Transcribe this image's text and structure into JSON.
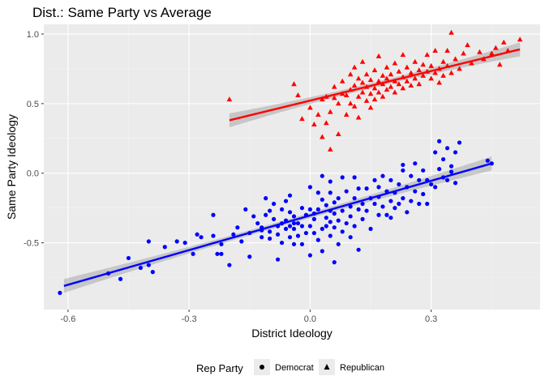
{
  "chart_data": {
    "type": "scatter",
    "title": "Dist.: Same Party vs Average",
    "xlabel": "District Ideology",
    "ylabel": "Same Party Ideology",
    "xlim": [
      -0.66,
      0.57
    ],
    "ylim": [
      -0.98,
      1.07
    ],
    "x_ticks": [
      -0.6,
      -0.3,
      0.0,
      0.3
    ],
    "x_tick_labels": [
      "-0.6",
      "-0.3",
      "0.0",
      "0.3"
    ],
    "y_ticks": [
      1.0,
      0.5,
      0.0,
      -0.5
    ],
    "y_tick_labels": [
      "1.0",
      "0.5",
      "0.0",
      "-0.5"
    ],
    "grid": true,
    "legend": {
      "title": "Rep Party",
      "position": "bottom",
      "entries": [
        "Democrat",
        "Republican"
      ]
    },
    "series": [
      {
        "name": "Democrat",
        "color": "#0000ff",
        "marker": "circle",
        "fit": {
          "x": [
            -0.61,
            0.45
          ],
          "y": [
            -0.81,
            0.07
          ]
        },
        "points": [
          [
            -0.62,
            -0.86
          ],
          [
            -0.5,
            -0.72
          ],
          [
            -0.47,
            -0.76
          ],
          [
            -0.45,
            -0.61
          ],
          [
            -0.42,
            -0.68
          ],
          [
            -0.4,
            -0.66
          ],
          [
            -0.4,
            -0.49
          ],
          [
            -0.39,
            -0.71
          ],
          [
            -0.36,
            -0.53
          ],
          [
            -0.33,
            -0.49
          ],
          [
            -0.31,
            -0.5
          ],
          [
            -0.29,
            -0.58
          ],
          [
            -0.28,
            -0.44
          ],
          [
            -0.27,
            -0.46
          ],
          [
            -0.24,
            -0.45
          ],
          [
            -0.24,
            -0.3
          ],
          [
            -0.23,
            -0.58
          ],
          [
            -0.22,
            -0.51
          ],
          [
            -0.22,
            -0.58
          ],
          [
            -0.2,
            -0.66
          ],
          [
            -0.19,
            -0.44
          ],
          [
            -0.18,
            -0.39
          ],
          [
            -0.17,
            -0.49
          ],
          [
            -0.16,
            -0.26
          ],
          [
            -0.15,
            -0.43
          ],
          [
            -0.15,
            -0.6
          ],
          [
            -0.14,
            -0.31
          ],
          [
            -0.13,
            -0.36
          ],
          [
            -0.12,
            -0.39
          ],
          [
            -0.12,
            -0.41
          ],
          [
            -0.12,
            -0.46
          ],
          [
            -0.11,
            -0.18
          ],
          [
            -0.11,
            -0.3
          ],
          [
            -0.1,
            -0.27
          ],
          [
            -0.1,
            -0.42
          ],
          [
            -0.1,
            -0.47
          ],
          [
            -0.09,
            -0.22
          ],
          [
            -0.09,
            -0.33
          ],
          [
            -0.08,
            -0.38
          ],
          [
            -0.08,
            -0.44
          ],
          [
            -0.08,
            -0.62
          ],
          [
            -0.07,
            -0.26
          ],
          [
            -0.07,
            -0.36
          ],
          [
            -0.07,
            -0.5
          ],
          [
            -0.06,
            -0.2
          ],
          [
            -0.06,
            -0.4
          ],
          [
            -0.06,
            -0.34
          ],
          [
            -0.05,
            -0.16
          ],
          [
            -0.05,
            -0.28
          ],
          [
            -0.05,
            -0.38
          ],
          [
            -0.05,
            -0.46
          ],
          [
            -0.04,
            -0.31
          ],
          [
            -0.04,
            -0.36
          ],
          [
            -0.04,
            -0.4
          ],
          [
            -0.04,
            -0.51
          ],
          [
            -0.03,
            -0.36
          ],
          [
            -0.03,
            -0.45
          ],
          [
            -0.02,
            -0.25
          ],
          [
            -0.02,
            -0.38
          ],
          [
            -0.02,
            -0.51
          ],
          [
            -0.01,
            -0.3
          ],
          [
            -0.01,
            -0.43
          ],
          [
            0.0,
            -0.1
          ],
          [
            0.0,
            -0.26
          ],
          [
            0.0,
            -0.38
          ],
          [
            0.0,
            -0.59
          ],
          [
            0.01,
            -0.29
          ],
          [
            0.01,
            -0.43
          ],
          [
            0.01,
            -0.33
          ],
          [
            0.02,
            -0.14
          ],
          [
            0.02,
            -0.26
          ],
          [
            0.02,
            -0.48
          ],
          [
            0.03,
            -0.02
          ],
          [
            0.03,
            -0.19
          ],
          [
            0.03,
            -0.4
          ],
          [
            0.03,
            -0.56
          ],
          [
            0.04,
            -0.23
          ],
          [
            0.04,
            -0.32
          ],
          [
            0.04,
            -0.38
          ],
          [
            0.05,
            -0.14
          ],
          [
            0.05,
            -0.27
          ],
          [
            0.05,
            -0.45
          ],
          [
            0.05,
            -0.35
          ],
          [
            0.05,
            -0.06
          ],
          [
            0.06,
            -0.21
          ],
          [
            0.06,
            -0.29
          ],
          [
            0.06,
            -0.39
          ],
          [
            0.06,
            -0.64
          ],
          [
            0.07,
            -0.18
          ],
          [
            0.07,
            -0.34
          ],
          [
            0.07,
            -0.51
          ],
          [
            0.08,
            -0.27
          ],
          [
            0.08,
            -0.03
          ],
          [
            0.08,
            -0.42
          ],
          [
            0.09,
            -0.13
          ],
          [
            0.09,
            -0.36
          ],
          [
            0.1,
            -0.24
          ],
          [
            0.1,
            -0.31
          ],
          [
            0.1,
            -0.46
          ],
          [
            0.11,
            -0.03
          ],
          [
            0.11,
            -0.18
          ],
          [
            0.11,
            -0.38
          ],
          [
            0.12,
            -0.11
          ],
          [
            0.12,
            -0.26
          ],
          [
            0.12,
            -0.55
          ],
          [
            0.13,
            -0.22
          ],
          [
            0.13,
            -0.33
          ],
          [
            0.14,
            -0.11
          ],
          [
            0.14,
            -0.27
          ],
          [
            0.15,
            -0.18
          ],
          [
            0.15,
            -0.4
          ],
          [
            0.16,
            -0.05
          ],
          [
            0.16,
            -0.22
          ],
          [
            0.17,
            -0.1
          ],
          [
            0.17,
            -0.3
          ],
          [
            0.17,
            -0.17
          ],
          [
            0.18,
            -0.24
          ],
          [
            0.18,
            -0.02
          ],
          [
            0.19,
            -0.13
          ],
          [
            0.19,
            -0.3
          ],
          [
            0.2,
            -0.2
          ],
          [
            0.2,
            -0.05
          ],
          [
            0.2,
            -0.32
          ],
          [
            0.21,
            -0.14
          ],
          [
            0.21,
            -0.25
          ],
          [
            0.22,
            -0.08
          ],
          [
            0.22,
            -0.22
          ],
          [
            0.23,
            0.06
          ],
          [
            0.23,
            -0.18
          ],
          [
            0.23,
            0.02
          ],
          [
            0.24,
            -0.1
          ],
          [
            0.24,
            -0.28
          ],
          [
            0.25,
            -0.02
          ],
          [
            0.25,
            -0.2
          ],
          [
            0.26,
            0.07
          ],
          [
            0.26,
            -0.13
          ],
          [
            0.27,
            -0.05
          ],
          [
            0.27,
            -0.22
          ],
          [
            0.28,
            -0.15
          ],
          [
            0.28,
            0.02
          ],
          [
            0.29,
            -0.05
          ],
          [
            0.29,
            -0.22
          ],
          [
            0.3,
            -0.08
          ],
          [
            0.31,
            0.15
          ],
          [
            0.31,
            -0.1
          ],
          [
            0.32,
            0.03
          ],
          [
            0.32,
            0.23
          ],
          [
            0.33,
            -0.03
          ],
          [
            0.33,
            0.1
          ],
          [
            0.34,
            0.18
          ],
          [
            0.34,
            -0.05
          ],
          [
            0.35,
            0.01
          ],
          [
            0.35,
            0.05
          ],
          [
            0.36,
            0.15
          ],
          [
            0.36,
            -0.07
          ],
          [
            0.37,
            0.22
          ],
          [
            0.44,
            0.09
          ],
          [
            0.45,
            0.07
          ]
        ]
      },
      {
        "name": "Republican",
        "color": "#ff0000",
        "marker": "triangle",
        "fit": {
          "x": [
            -0.2,
            0.52
          ],
          "y": [
            0.38,
            0.89
          ]
        },
        "points": [
          [
            -0.2,
            0.53
          ],
          [
            -0.04,
            0.64
          ],
          [
            -0.03,
            0.56
          ],
          [
            -0.02,
            0.39
          ],
          [
            0.0,
            0.47
          ],
          [
            0.01,
            0.35
          ],
          [
            0.02,
            0.42
          ],
          [
            0.03,
            0.26
          ],
          [
            0.03,
            0.53
          ],
          [
            0.04,
            0.36
          ],
          [
            0.04,
            0.55
          ],
          [
            0.05,
            0.17
          ],
          [
            0.05,
            0.44
          ],
          [
            0.06,
            0.54
          ],
          [
            0.06,
            0.62
          ],
          [
            0.07,
            0.28
          ],
          [
            0.07,
            0.5
          ],
          [
            0.08,
            0.57
          ],
          [
            0.08,
            0.66
          ],
          [
            0.09,
            0.42
          ],
          [
            0.09,
            0.56
          ],
          [
            0.1,
            0.6
          ],
          [
            0.1,
            0.5
          ],
          [
            0.1,
            0.71
          ],
          [
            0.11,
            0.48
          ],
          [
            0.11,
            0.63
          ],
          [
            0.11,
            0.76
          ],
          [
            0.12,
            0.55
          ],
          [
            0.12,
            0.68
          ],
          [
            0.12,
            0.4
          ],
          [
            0.13,
            0.58
          ],
          [
            0.13,
            0.65
          ],
          [
            0.13,
            0.8
          ],
          [
            0.14,
            0.52
          ],
          [
            0.14,
            0.62
          ],
          [
            0.14,
            0.71
          ],
          [
            0.15,
            0.47
          ],
          [
            0.15,
            0.57
          ],
          [
            0.15,
            0.67
          ],
          [
            0.16,
            0.53
          ],
          [
            0.16,
            0.61
          ],
          [
            0.16,
            0.74
          ],
          [
            0.17,
            0.58
          ],
          [
            0.17,
            0.66
          ],
          [
            0.17,
            0.84
          ],
          [
            0.18,
            0.55
          ],
          [
            0.18,
            0.64
          ],
          [
            0.18,
            0.7
          ],
          [
            0.19,
            0.6
          ],
          [
            0.19,
            0.68
          ],
          [
            0.19,
            0.76
          ],
          [
            0.2,
            0.62
          ],
          [
            0.2,
            0.71
          ],
          [
            0.21,
            0.58
          ],
          [
            0.21,
            0.66
          ],
          [
            0.21,
            0.79
          ],
          [
            0.22,
            0.64
          ],
          [
            0.22,
            0.73
          ],
          [
            0.23,
            0.61
          ],
          [
            0.23,
            0.69
          ],
          [
            0.23,
            0.85
          ],
          [
            0.24,
            0.66
          ],
          [
            0.24,
            0.76
          ],
          [
            0.25,
            0.63
          ],
          [
            0.25,
            0.72
          ],
          [
            0.26,
            0.68
          ],
          [
            0.26,
            0.8
          ],
          [
            0.27,
            0.74
          ],
          [
            0.27,
            0.64
          ],
          [
            0.28,
            0.7
          ],
          [
            0.28,
            0.78
          ],
          [
            0.29,
            0.73
          ],
          [
            0.29,
            0.85
          ],
          [
            0.3,
            0.68
          ],
          [
            0.3,
            0.77
          ],
          [
            0.31,
            0.72
          ],
          [
            0.31,
            0.88
          ],
          [
            0.32,
            0.75
          ],
          [
            0.32,
            0.65
          ],
          [
            0.33,
            0.8
          ],
          [
            0.33,
            0.7
          ],
          [
            0.34,
            0.77
          ],
          [
            0.34,
            0.88
          ],
          [
            0.35,
            1.01
          ],
          [
            0.35,
            0.72
          ],
          [
            0.36,
            0.82
          ],
          [
            0.37,
            0.75
          ],
          [
            0.38,
            0.86
          ],
          [
            0.39,
            0.92
          ],
          [
            0.4,
            0.79
          ],
          [
            0.42,
            0.87
          ],
          [
            0.43,
            0.82
          ],
          [
            0.45,
            0.86
          ],
          [
            0.46,
            0.9
          ],
          [
            0.47,
            0.78
          ],
          [
            0.48,
            0.94
          ],
          [
            0.49,
            0.88
          ],
          [
            0.52,
            0.96
          ]
        ]
      }
    ]
  }
}
